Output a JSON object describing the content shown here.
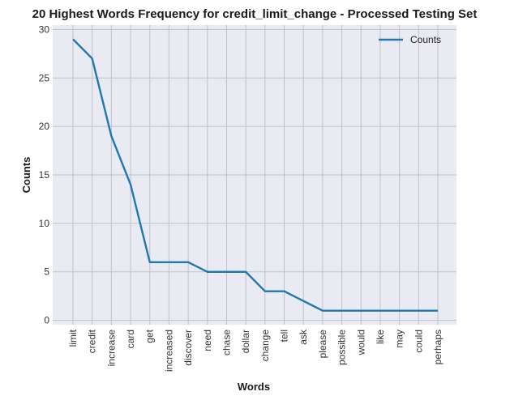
{
  "chart_data": {
    "type": "line",
    "title": "20 Highest Words Frequency for credit_limit_change - Processed Testing Set",
    "xlabel": "Words",
    "ylabel": "Counts",
    "categories": [
      "limit",
      "credit",
      "increase",
      "card",
      "get",
      "increased",
      "discover",
      "need",
      "chase",
      "dollar",
      "change",
      "tell",
      "ask",
      "please",
      "possible",
      "would",
      "like",
      "may",
      "could",
      "perhaps"
    ],
    "series": [
      {
        "name": "Counts",
        "values": [
          29,
          27,
          19,
          14,
          6,
          6,
          6,
          5,
          5,
          5,
          3,
          3,
          2,
          1,
          1,
          1,
          1,
          1,
          1,
          1
        ],
        "color": "#1f77b4"
      }
    ],
    "yticks": [
      0,
      5,
      10,
      15,
      20,
      25,
      30
    ],
    "ylim": [
      -0.45,
      30.45
    ],
    "grid": true,
    "legend_position": "top-right",
    "background_color": "#eaeaf2",
    "grid_color": "#c0c0c8"
  }
}
